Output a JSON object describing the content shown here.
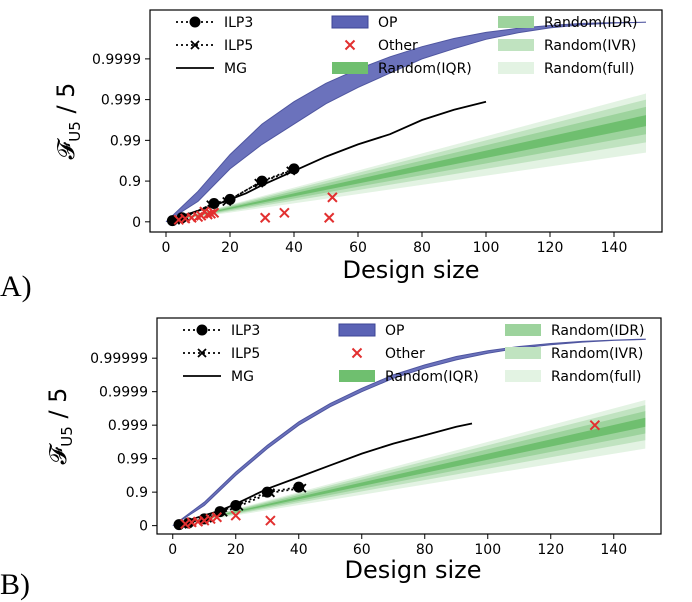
{
  "colors": {
    "op": "#5b63b5",
    "op_edge": "#3d4496",
    "iqr": "#6fbf6f",
    "idr": "#9dd39d",
    "ivr": "#c0e3c0",
    "full": "#e3f3e3",
    "other": "#e23030",
    "mg": "#000000"
  },
  "legend": {
    "ilp3": "ILP3",
    "ilp5": "ILP5",
    "mg": "MG",
    "op": "OP",
    "other": "Other",
    "iqr": "Random(IQR)",
    "idr": "Random(IDR)",
    "ivr": "Random(IVR)",
    "full": "Random(full)"
  },
  "chart_data": [
    {
      "panel_label": "A)",
      "type": "line",
      "xlabel": "Design size",
      "ylabel": "F_U5 / 5",
      "ylabel_main": "𝓕",
      "ylabel_sub": "U5",
      "ylabel_rest": " / 5",
      "y_scale": "log-complement (-log10(1-y))",
      "xlim": [
        -5,
        155
      ],
      "x_ticks": [
        "0",
        "20",
        "40",
        "60",
        "80",
        "100",
        "120",
        "140"
      ],
      "x_tick_values": [
        0,
        20,
        40,
        60,
        80,
        100,
        120,
        140
      ],
      "y_ticks": [
        "0",
        "0.9",
        "0.99",
        "0.999",
        "0.9999"
      ],
      "y_tick_values": [
        0,
        1,
        2,
        3,
        4
      ],
      "ylim_t": [
        -0.25,
        5.2
      ],
      "legend_position": "top",
      "series": [
        {
          "name": "ILP3",
          "kind": "dotted-circle",
          "x": [
            2,
            5,
            15,
            20,
            30,
            40
          ],
          "t": [
            0.03,
            0.1,
            0.45,
            0.55,
            1.0,
            1.3
          ]
        },
        {
          "name": "ILP5",
          "kind": "dotted-x",
          "x": [
            3,
            6,
            14,
            19,
            29,
            39
          ],
          "t": [
            0.04,
            0.12,
            0.42,
            0.5,
            0.95,
            1.25
          ]
        },
        {
          "name": "MG",
          "kind": "line",
          "x": [
            3,
            8,
            15,
            20,
            25,
            30,
            40,
            50,
            60,
            70,
            80,
            90,
            100
          ],
          "t": [
            0.1,
            0.22,
            0.4,
            0.55,
            0.7,
            0.9,
            1.25,
            1.6,
            1.9,
            2.15,
            2.5,
            2.75,
            2.95
          ]
        },
        {
          "name": "OP",
          "kind": "band",
          "x": [
            0,
            10,
            20,
            30,
            40,
            50,
            60,
            70,
            80,
            90,
            100,
            110,
            120,
            130,
            140,
            150
          ],
          "lower": [
            0.0,
            0.5,
            1.3,
            1.9,
            2.4,
            2.9,
            3.3,
            3.65,
            4.0,
            4.25,
            4.48,
            4.64,
            4.76,
            4.84,
            4.88,
            4.9
          ],
          "upper": [
            0.0,
            0.75,
            1.65,
            2.4,
            2.95,
            3.4,
            3.75,
            4.05,
            4.3,
            4.5,
            4.65,
            4.75,
            4.82,
            4.87,
            4.89,
            4.9
          ]
        },
        {
          "name": "Other",
          "kind": "scatter",
          "x": [
            4,
            6,
            8,
            10,
            11,
            12,
            13,
            14,
            15,
            31,
            37,
            51,
            52
          ],
          "t": [
            0.05,
            0.08,
            0.1,
            0.12,
            0.15,
            0.25,
            0.18,
            0.2,
            0.22,
            0.1,
            0.22,
            0.1,
            0.6
          ]
        },
        {
          "name": "Random(IQR)",
          "kind": "band",
          "x": [
            0,
            150
          ],
          "lower": [
            0.0,
            2.35
          ],
          "upper": [
            0.0,
            2.62
          ]
        },
        {
          "name": "Random(IDR)",
          "kind": "band",
          "x": [
            0,
            150
          ],
          "lower": [
            0.0,
            2.15
          ],
          "upper": [
            0.0,
            2.82
          ]
        },
        {
          "name": "Random(IVR)",
          "kind": "band",
          "x": [
            0,
            150
          ],
          "lower": [
            0.0,
            1.95
          ],
          "upper": [
            0.0,
            3.0
          ]
        },
        {
          "name": "Random(full)",
          "kind": "band",
          "x": [
            0,
            150
          ],
          "lower": [
            0.0,
            1.7
          ],
          "upper": [
            0.0,
            3.15
          ]
        }
      ]
    },
    {
      "panel_label": "B)",
      "type": "line",
      "xlabel": "Design size",
      "ylabel": "F_U5 / 5",
      "ylabel_main": "𝓕",
      "ylabel_sub": "U5",
      "ylabel_rest": " / 5",
      "y_scale": "log-complement (-log10(1-y))",
      "xlim": [
        -5,
        155
      ],
      "x_ticks": [
        "0",
        "20",
        "40",
        "60",
        "80",
        "100",
        "120",
        "140"
      ],
      "x_tick_values": [
        0,
        20,
        40,
        60,
        80,
        100,
        120,
        140
      ],
      "y_ticks": [
        "0",
        "0.9",
        "0.99",
        "0.999",
        "0.9999",
        "0.99999"
      ],
      "y_tick_values": [
        0,
        1,
        2,
        3,
        4,
        5
      ],
      "ylim_t": [
        -0.25,
        6.2
      ],
      "legend_position": "top",
      "series": [
        {
          "name": "ILP3",
          "kind": "dotted-circle",
          "x": [
            2,
            5,
            10,
            15,
            20,
            30,
            40
          ],
          "t": [
            0.03,
            0.08,
            0.2,
            0.42,
            0.6,
            1.0,
            1.15
          ]
        },
        {
          "name": "ILP5",
          "kind": "dotted-x",
          "x": [
            3,
            6,
            11,
            16,
            21,
            31,
            41
          ],
          "t": [
            0.04,
            0.1,
            0.22,
            0.4,
            0.58,
            0.98,
            1.12
          ]
        },
        {
          "name": "MG",
          "kind": "line",
          "x": [
            3,
            8,
            15,
            20,
            30,
            40,
            50,
            60,
            70,
            80,
            90,
            95
          ],
          "t": [
            0.1,
            0.25,
            0.45,
            0.65,
            1.1,
            1.45,
            1.8,
            2.15,
            2.45,
            2.7,
            2.95,
            3.05
          ]
        },
        {
          "name": "OP",
          "kind": "band",
          "x": [
            0,
            10,
            20,
            30,
            40,
            50,
            60,
            70,
            80,
            90,
            100,
            110,
            120,
            130,
            140,
            150
          ],
          "lower": [
            0.0,
            0.6,
            1.5,
            2.3,
            3.0,
            3.55,
            4.0,
            4.4,
            4.7,
            4.95,
            5.15,
            5.3,
            5.4,
            5.48,
            5.53,
            5.56
          ],
          "upper": [
            0.0,
            0.7,
            1.6,
            2.4,
            3.1,
            3.65,
            4.1,
            4.5,
            4.8,
            5.05,
            5.22,
            5.35,
            5.44,
            5.5,
            5.54,
            5.57
          ]
        },
        {
          "name": "Other",
          "kind": "scatter",
          "x": [
            4,
            6,
            8,
            10,
            12,
            14,
            20,
            31,
            134
          ],
          "t": [
            0.05,
            0.1,
            0.12,
            0.15,
            0.2,
            0.25,
            0.3,
            0.15,
            3.0
          ]
        },
        {
          "name": "Random(IQR)",
          "kind": "band",
          "x": [
            0,
            150
          ],
          "lower": [
            0.0,
            2.95
          ],
          "upper": [
            0.0,
            3.22
          ]
        },
        {
          "name": "Random(IDR)",
          "kind": "band",
          "x": [
            0,
            150
          ],
          "lower": [
            0.0,
            2.75
          ],
          "upper": [
            0.0,
            3.42
          ]
        },
        {
          "name": "Random(IVR)",
          "kind": "band",
          "x": [
            0,
            150
          ],
          "lower": [
            0.0,
            2.55
          ],
          "upper": [
            0.0,
            3.6
          ]
        },
        {
          "name": "Random(full)",
          "kind": "band",
          "x": [
            0,
            150
          ],
          "lower": [
            0.0,
            2.3
          ],
          "upper": [
            0.0,
            3.75
          ]
        }
      ]
    }
  ]
}
